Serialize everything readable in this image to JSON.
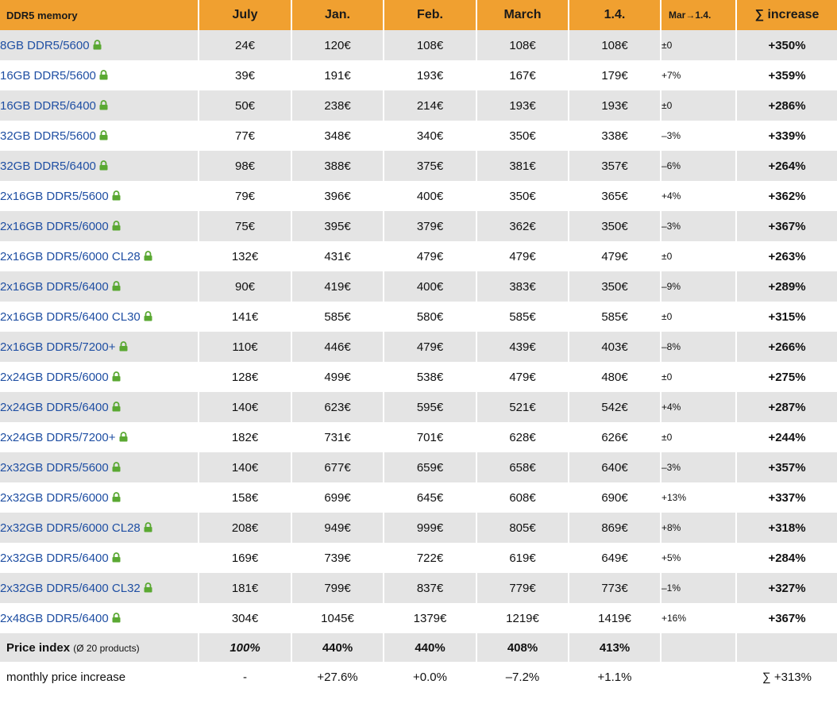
{
  "header": {
    "product": "DDR5 memory",
    "july": "July",
    "jan": "Jan.",
    "feb": "Feb.",
    "march": "March",
    "apr1": "1.4.",
    "mar_apr": "Mar→1.4.",
    "increase": "∑ increase"
  },
  "icons": {
    "lock_color": "#5aa832"
  },
  "rows": [
    {
      "product": "8GB DDR5/5600",
      "july": "24€",
      "jan": "120€",
      "feb": "108€",
      "march": "108€",
      "apr1": "108€",
      "diff": "±0",
      "total": "+350%"
    },
    {
      "product": "16GB DDR5/5600",
      "july": "39€",
      "jan": "191€",
      "feb": "193€",
      "march": "167€",
      "apr1": "179€",
      "diff": "+7%",
      "total": "+359%"
    },
    {
      "product": "16GB DDR5/6400",
      "july": "50€",
      "jan": "238€",
      "feb": "214€",
      "march": "193€",
      "apr1": "193€",
      "diff": "±0",
      "total": "+286%"
    },
    {
      "product": "32GB DDR5/5600",
      "july": "77€",
      "jan": "348€",
      "feb": "340€",
      "march": "350€",
      "apr1": "338€",
      "diff": "–3%",
      "total": "+339%"
    },
    {
      "product": "32GB DDR5/6400",
      "july": "98€",
      "jan": "388€",
      "feb": "375€",
      "march": "381€",
      "apr1": "357€",
      "diff": "–6%",
      "total": "+264%"
    },
    {
      "product": "2x16GB DDR5/5600",
      "july": "79€",
      "jan": "396€",
      "feb": "400€",
      "march": "350€",
      "apr1": "365€",
      "diff": "+4%",
      "total": "+362%"
    },
    {
      "product": "2x16GB DDR5/6000",
      "july": "75€",
      "jan": "395€",
      "feb": "379€",
      "march": "362€",
      "apr1": "350€",
      "diff": "–3%",
      "total": "+367%"
    },
    {
      "product": "2x16GB DDR5/6000 CL28",
      "july": "132€",
      "jan": "431€",
      "feb": "479€",
      "march": "479€",
      "apr1": "479€",
      "diff": "±0",
      "total": "+263%"
    },
    {
      "product": "2x16GB DDR5/6400",
      "july": "90€",
      "jan": "419€",
      "feb": "400€",
      "march": "383€",
      "apr1": "350€",
      "diff": "–9%",
      "total": "+289%"
    },
    {
      "product": "2x16GB DDR5/6400 CL30",
      "july": "141€",
      "jan": "585€",
      "feb": "580€",
      "march": "585€",
      "apr1": "585€",
      "diff": "±0",
      "total": "+315%"
    },
    {
      "product": "2x16GB DDR5/7200+",
      "july": "110€",
      "jan": "446€",
      "feb": "479€",
      "march": "439€",
      "apr1": "403€",
      "diff": "–8%",
      "total": "+266%"
    },
    {
      "product": "2x24GB DDR5/6000",
      "july": "128€",
      "jan": "499€",
      "feb": "538€",
      "march": "479€",
      "apr1": "480€",
      "diff": "±0",
      "total": "+275%"
    },
    {
      "product": "2x24GB DDR5/6400",
      "july": "140€",
      "jan": "623€",
      "feb": "595€",
      "march": "521€",
      "apr1": "542€",
      "diff": "+4%",
      "total": "+287%"
    },
    {
      "product": "2x24GB DDR5/7200+",
      "july": "182€",
      "jan": "731€",
      "feb": "701€",
      "march": "628€",
      "apr1": "626€",
      "diff": "±0",
      "total": "+244%"
    },
    {
      "product": "2x32GB DDR5/5600",
      "july": "140€",
      "jan": "677€",
      "feb": "659€",
      "march": "658€",
      "apr1": "640€",
      "diff": "–3%",
      "total": "+357%"
    },
    {
      "product": "2x32GB DDR5/6000",
      "july": "158€",
      "jan": "699€",
      "feb": "645€",
      "march": "608€",
      "apr1": "690€",
      "diff": "+13%",
      "total": "+337%"
    },
    {
      "product": "2x32GB DDR5/6000 CL28",
      "july": "208€",
      "jan": "949€",
      "feb": "999€",
      "march": "805€",
      "apr1": "869€",
      "diff": "+8%",
      "total": "+318%"
    },
    {
      "product": "2x32GB DDR5/6400",
      "july": "169€",
      "jan": "739€",
      "feb": "722€",
      "march": "619€",
      "apr1": "649€",
      "diff": "+5%",
      "total": "+284%"
    },
    {
      "product": "2x32GB DDR5/6400 CL32",
      "july": "181€",
      "jan": "799€",
      "feb": "837€",
      "march": "779€",
      "apr1": "773€",
      "diff": "–1%",
      "total": "+327%"
    },
    {
      "product": "2x48GB DDR5/6400",
      "july": "304€",
      "jan": "1045€",
      "feb": "1379€",
      "march": "1219€",
      "apr1": "1419€",
      "diff": "+16%",
      "total": "+367%"
    }
  ],
  "index_row": {
    "label": "Price index",
    "sub": "(Ø 20 products)",
    "july": "100%",
    "jan": "440%",
    "feb": "440%",
    "march": "408%",
    "apr1": "413%"
  },
  "monthly_row": {
    "label": "monthly price increase",
    "july": "-",
    "jan": "+27.6%",
    "feb": "+0.0%",
    "march": "–7.2%",
    "apr1": "+1.1%",
    "total": "∑ +313%"
  }
}
